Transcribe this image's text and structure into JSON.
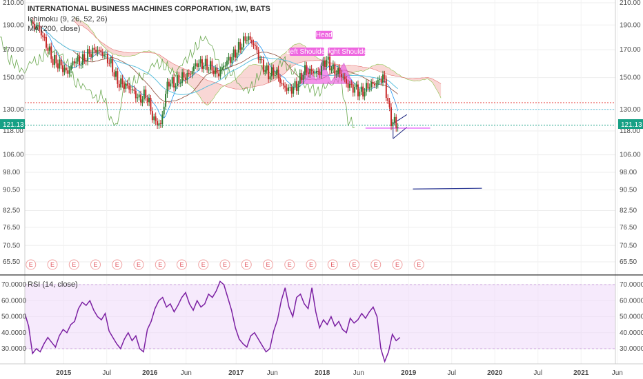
{
  "chart_data": {
    "type": "candlestick",
    "title": "INTERNATIONAL BUSINESS MACHINES CORPORATION, 1W, BATS",
    "indicators": [
      "Ichimoku (9, 26, 52, 26)",
      "MA (200, close)"
    ],
    "price_axis": {
      "ticks": [
        "210.00",
        "190.00",
        "170.00",
        "150.00",
        "130.00",
        "118.00",
        "106.00",
        "98.00",
        "90.50",
        "82.50",
        "76.50",
        "70.50",
        "65.50"
      ],
      "last_price": "121.13",
      "scale": "log"
    },
    "time_axis": {
      "ticks": [
        "2015",
        "Jul",
        "2016",
        "Jun",
        "2017",
        "Jun",
        "2018",
        "Jun",
        "2019",
        "Jul",
        "2020",
        "Jul",
        "2021",
        "Jun"
      ]
    },
    "price_series": [
      {
        "x": "2014-08",
        "close": 190
      },
      {
        "x": "2014-09",
        "close": 188
      },
      {
        "x": "2014-10",
        "close": 175
      },
      {
        "x": "2014-11",
        "close": 162
      },
      {
        "x": "2014-12",
        "close": 159
      },
      {
        "x": "2015-01",
        "close": 153
      },
      {
        "x": "2015-02",
        "close": 162
      },
      {
        "x": "2015-03",
        "close": 161
      },
      {
        "x": "2015-04",
        "close": 167
      },
      {
        "x": "2015-05",
        "close": 170
      },
      {
        "x": "2015-06",
        "close": 167
      },
      {
        "x": "2015-07",
        "close": 160
      },
      {
        "x": "2015-08",
        "close": 147
      },
      {
        "x": "2015-09",
        "close": 145
      },
      {
        "x": "2015-10",
        "close": 142
      },
      {
        "x": "2015-11",
        "close": 136
      },
      {
        "x": "2015-12",
        "close": 139
      },
      {
        "x": "2016-01",
        "close": 124
      },
      {
        "x": "2016-02",
        "close": 121
      },
      {
        "x": "2016-03",
        "close": 147
      },
      {
        "x": "2016-04",
        "close": 146
      },
      {
        "x": "2016-05",
        "close": 150
      },
      {
        "x": "2016-06",
        "close": 152
      },
      {
        "x": "2016-07",
        "close": 160
      },
      {
        "x": "2016-08",
        "close": 159
      },
      {
        "x": "2016-09",
        "close": 157
      },
      {
        "x": "2016-10",
        "close": 152
      },
      {
        "x": "2016-11",
        "close": 160
      },
      {
        "x": "2016-12",
        "close": 165
      },
      {
        "x": "2017-01",
        "close": 172
      },
      {
        "x": "2017-02",
        "close": 180
      },
      {
        "x": "2017-03",
        "close": 174
      },
      {
        "x": "2017-04",
        "close": 160
      },
      {
        "x": "2017-05",
        "close": 152
      },
      {
        "x": "2017-06",
        "close": 154
      },
      {
        "x": "2017-07",
        "close": 144
      },
      {
        "x": "2017-08",
        "close": 142
      },
      {
        "x": "2017-09",
        "close": 145
      },
      {
        "x": "2017-10",
        "close": 155
      },
      {
        "x": "2017-11",
        "close": 154
      },
      {
        "x": "2017-12",
        "close": 153
      },
      {
        "x": "2018-01",
        "close": 163
      },
      {
        "x": "2018-02",
        "close": 155
      },
      {
        "x": "2018-03",
        "close": 153
      },
      {
        "x": "2018-04",
        "close": 145
      },
      {
        "x": "2018-05",
        "close": 143
      },
      {
        "x": "2018-06",
        "close": 140
      },
      {
        "x": "2018-07",
        "close": 145
      },
      {
        "x": "2018-08",
        "close": 146
      },
      {
        "x": "2018-09",
        "close": 151
      },
      {
        "x": "2018-10",
        "close": 124
      },
      {
        "x": "2018-11",
        "close": 121.13
      }
    ],
    "annotations": [
      {
        "text": "Head"
      },
      {
        "text": "Left Shoulder"
      },
      {
        "text": "Right Shoulder"
      }
    ],
    "earnings_markers": {
      "label": "E",
      "count": 19
    },
    "rsi": {
      "label": "RSI (14, close)",
      "ticks": [
        "70.0000",
        "60.0000",
        "50.0000",
        "40.0000",
        "30.0000"
      ],
      "band": [
        30,
        70
      ],
      "values": [
        52,
        44,
        27,
        30,
        28,
        33,
        37,
        34,
        31,
        38,
        42,
        40,
        45,
        47,
        55,
        59,
        57,
        60,
        54,
        50,
        48,
        52,
        41,
        37,
        33,
        30,
        36,
        40,
        35,
        38,
        30,
        28,
        42,
        47,
        55,
        60,
        62,
        56,
        58,
        53,
        57,
        62,
        65,
        58,
        54,
        60,
        56,
        58,
        64,
        62,
        66,
        72,
        70,
        62,
        54,
        43,
        36,
        33,
        31,
        38,
        40,
        36,
        32,
        28,
        30,
        41,
        48,
        60,
        68,
        56,
        50,
        62,
        64,
        58,
        55,
        68,
        53,
        43,
        48,
        45,
        50,
        44,
        47,
        42,
        40,
        49,
        46,
        48,
        52,
        49,
        53,
        56,
        50,
        30,
        22,
        28,
        39,
        35,
        37
      ],
      "current": 37
    },
    "grid": true,
    "legend": "top-left"
  }
}
